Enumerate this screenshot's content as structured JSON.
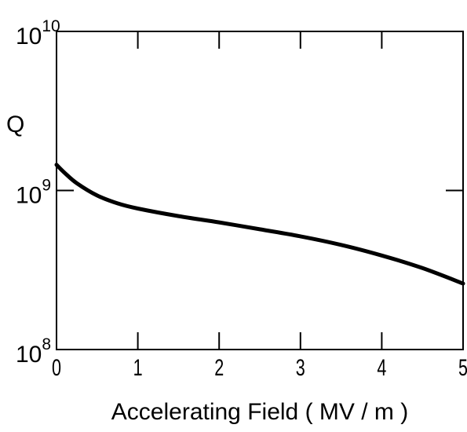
{
  "chart_data": {
    "type": "line",
    "xlabel": "Accelerating Field ( MV / m )",
    "ylabel": "Q",
    "xlim": [
      0,
      5
    ],
    "ylim": [
      100000000,
      10000000000
    ],
    "yscale": "log",
    "grid": false,
    "x_ticks": [
      "0",
      "1",
      "2",
      "3",
      "4",
      "5"
    ],
    "y_ticks": [
      {
        "base": "10",
        "exp": "8",
        "value": 100000000
      },
      {
        "base": "10",
        "exp": "9",
        "value": 1000000000
      },
      {
        "base": "10",
        "exp": "10",
        "value": 10000000000
      }
    ],
    "series": [
      {
        "x": [
          0,
          0.1,
          0.25,
          0.5,
          0.75,
          1,
          1.5,
          2,
          2.5,
          3,
          3.5,
          4,
          4.5,
          5
        ],
        "y": [
          1450000000,
          1290000000,
          1110000000,
          930000000,
          830000000,
          770000000,
          690000000,
          630000000,
          570000000,
          515000000,
          455000000,
          390000000,
          325000000,
          260000000
        ]
      }
    ]
  }
}
